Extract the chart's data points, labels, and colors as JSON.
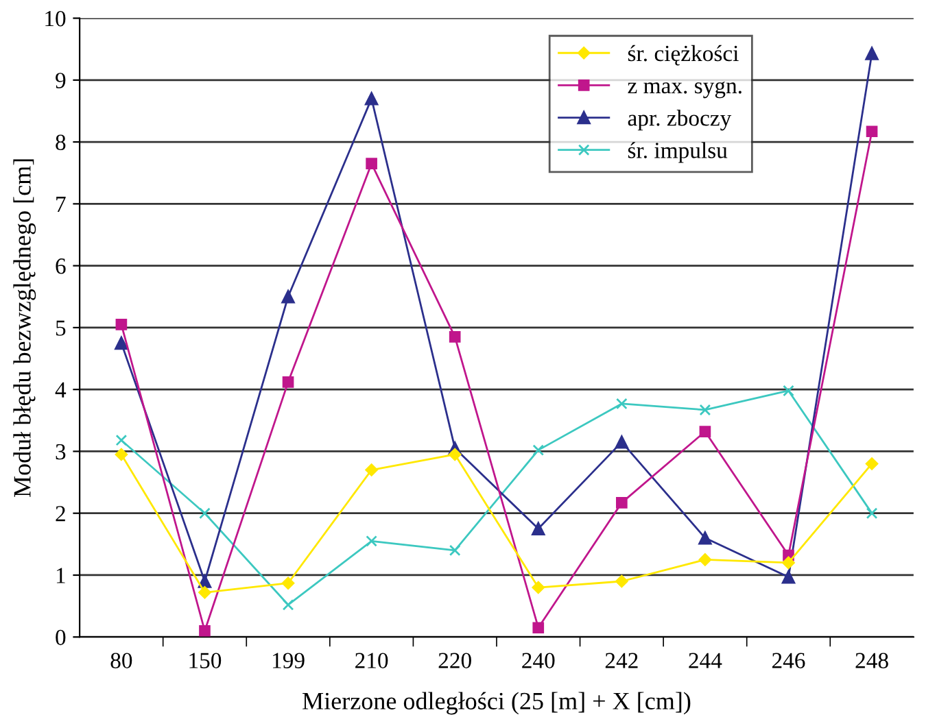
{
  "chart_data": {
    "type": "line",
    "xlabel": "Mierzone odległości (25 [m] + X [cm])",
    "ylabel": "Moduł błędu bezwzględnego [cm]",
    "categories": [
      "80",
      "150",
      "199",
      "210",
      "220",
      "240",
      "242",
      "244",
      "246",
      "248"
    ],
    "series": [
      {
        "name": "śr. ciężkości",
        "color": "#ffe800",
        "marker": "diamond",
        "values": [
          2.95,
          0.72,
          0.87,
          2.7,
          2.95,
          0.8,
          0.9,
          1.25,
          1.2,
          2.8
        ]
      },
      {
        "name": "z max. sygn.",
        "color": "#c0168c",
        "marker": "square",
        "values": [
          5.05,
          0.1,
          4.12,
          7.65,
          4.85,
          0.15,
          2.17,
          3.32,
          1.32,
          8.17
        ]
      },
      {
        "name": "apr. zboczy",
        "color": "#2b2f8c",
        "marker": "triangle",
        "values": [
          4.75,
          0.9,
          5.5,
          8.7,
          3.05,
          1.75,
          3.15,
          1.6,
          0.97,
          9.43
        ]
      },
      {
        "name": "śr. impulsu",
        "color": "#3cc8c0",
        "marker": "cross",
        "values": [
          3.18,
          2.0,
          0.52,
          1.55,
          1.4,
          3.02,
          3.77,
          3.67,
          3.98,
          2.0
        ]
      }
    ],
    "ylim": [
      0,
      10
    ],
    "yticks": [
      0,
      1,
      2,
      3,
      4,
      5,
      6,
      7,
      8,
      9,
      10
    ],
    "grid": "y",
    "legend": "top right",
    "line_style": "solid"
  }
}
